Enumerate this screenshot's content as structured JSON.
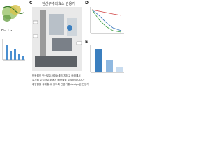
{
  "panels": {
    "c_label": "C",
    "d_label": "D",
    "e_label": "E"
  },
  "reactor_title": "탄산무수화효소 반응기",
  "molecule": "H₂CO₃",
  "caption": [
    "반응물인 탄산무수화효소를 담지하고 아래에서",
    "유기물 주입하고 위에서 배양물을 분석하여 CO₂가",
    "배양물을 유해할 수 있도록 반응기를 design된 반응기"
  ]
}
